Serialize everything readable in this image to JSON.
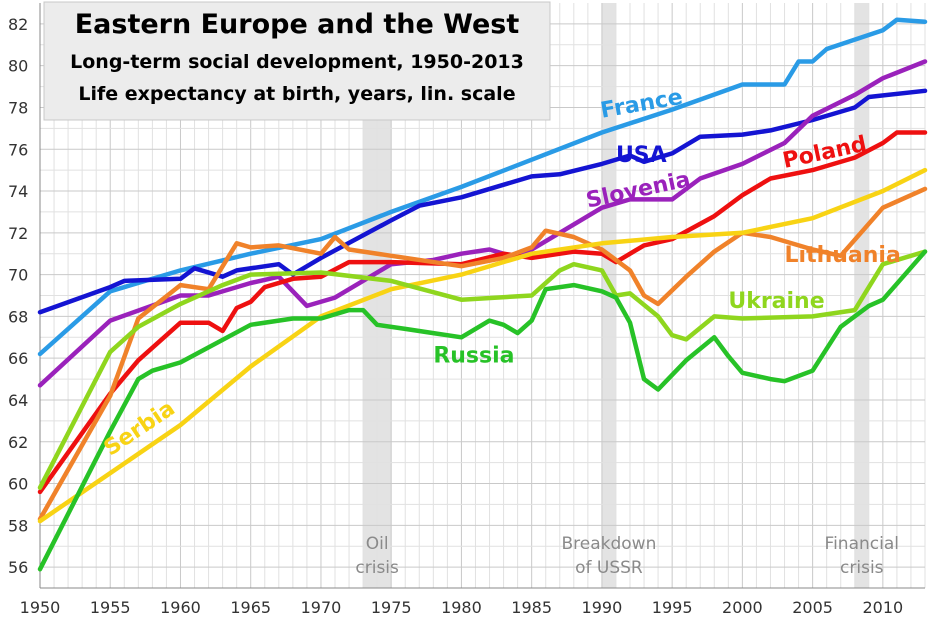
{
  "chart_data": {
    "type": "line",
    "title": "Eastern Europe and the West",
    "subtitle": "Long-term social development, 1950-2013",
    "subtitle2": "Life expectancy at birth, years, lin. scale",
    "xlim": [
      1950,
      2013
    ],
    "ylim": [
      55,
      83
    ],
    "x_ticks": [
      1950,
      1955,
      1960,
      1965,
      1970,
      1975,
      1980,
      1985,
      1990,
      1995,
      2000,
      2005,
      2010
    ],
    "y_ticks": [
      56,
      58,
      60,
      62,
      64,
      66,
      68,
      70,
      72,
      74,
      76,
      78,
      80,
      82
    ],
    "grid": true,
    "bands": [
      {
        "start": 1973,
        "end": 1975,
        "label_lines": [
          "Oil",
          "crisis"
        ]
      },
      {
        "start": 1990,
        "end": 1991,
        "label_lines": [
          "Breakdown",
          "of USSR"
        ]
      },
      {
        "start": 2008,
        "end": 2009,
        "label_lines": [
          "Financial",
          "crisis"
        ]
      }
    ],
    "series": [
      {
        "name": "France",
        "color": "#2a9be6",
        "label_x": 1990,
        "label_y": 77.5,
        "points": [
          [
            1950,
            66.2
          ],
          [
            1955,
            69.2
          ],
          [
            1960,
            70.2
          ],
          [
            1965,
            71.0
          ],
          [
            1970,
            71.7
          ],
          [
            1975,
            73.0
          ],
          [
            1980,
            74.2
          ],
          [
            1985,
            75.5
          ],
          [
            1990,
            76.8
          ],
          [
            1995,
            77.9
          ],
          [
            2000,
            79.1
          ],
          [
            2003,
            79.1
          ],
          [
            2004,
            80.2
          ],
          [
            2005,
            80.2
          ],
          [
            2006,
            80.8
          ],
          [
            2010,
            81.7
          ],
          [
            2011,
            82.2
          ],
          [
            2013,
            82.1
          ]
        ]
      },
      {
        "name": "USA",
        "color": "#1414d2",
        "label_x": 1991,
        "label_y": 75.4,
        "points": [
          [
            1950,
            68.2
          ],
          [
            1955,
            69.4
          ],
          [
            1956,
            69.7
          ],
          [
            1960,
            69.8
          ],
          [
            1961,
            70.3
          ],
          [
            1963,
            69.9
          ],
          [
            1964,
            70.2
          ],
          [
            1967,
            70.5
          ],
          [
            1968,
            70.0
          ],
          [
            1970,
            70.8
          ],
          [
            1975,
            72.6
          ],
          [
            1977,
            73.3
          ],
          [
            1980,
            73.7
          ],
          [
            1985,
            74.7
          ],
          [
            1987,
            74.8
          ],
          [
            1990,
            75.3
          ],
          [
            1992,
            75.7
          ],
          [
            1993,
            75.4
          ],
          [
            1995,
            75.8
          ],
          [
            1997,
            76.6
          ],
          [
            2000,
            76.7
          ],
          [
            2002,
            76.9
          ],
          [
            2005,
            77.4
          ],
          [
            2008,
            78.0
          ],
          [
            2009,
            78.5
          ],
          [
            2013,
            78.8
          ]
        ]
      },
      {
        "name": "Slovenia",
        "color": "#9a22bb",
        "label_x": 1989,
        "label_y": 73.2,
        "points": [
          [
            1950,
            64.7
          ],
          [
            1955,
            67.8
          ],
          [
            1960,
            69.0
          ],
          [
            1962,
            69.0
          ],
          [
            1965,
            69.6
          ],
          [
            1967,
            69.9
          ],
          [
            1969,
            68.5
          ],
          [
            1971,
            68.9
          ],
          [
            1975,
            70.5
          ],
          [
            1978,
            70.7
          ],
          [
            1980,
            71.0
          ],
          [
            1982,
            71.2
          ],
          [
            1984,
            70.8
          ],
          [
            1987,
            72.0
          ],
          [
            1990,
            73.2
          ],
          [
            1992,
            73.6
          ],
          [
            1995,
            73.6
          ],
          [
            1997,
            74.6
          ],
          [
            2000,
            75.3
          ],
          [
            2003,
            76.3
          ],
          [
            2005,
            77.6
          ],
          [
            2008,
            78.6
          ],
          [
            2010,
            79.4
          ],
          [
            2013,
            80.2
          ]
        ]
      },
      {
        "name": "Poland",
        "color": "#ee1010",
        "label_x": 2003,
        "label_y": 75.1,
        "points": [
          [
            1950,
            59.6
          ],
          [
            1955,
            64.3
          ],
          [
            1957,
            65.9
          ],
          [
            1960,
            67.7
          ],
          [
            1962,
            67.7
          ],
          [
            1963,
            67.3
          ],
          [
            1964,
            68.4
          ],
          [
            1965,
            68.7
          ],
          [
            1966,
            69.4
          ],
          [
            1968,
            69.8
          ],
          [
            1970,
            69.9
          ],
          [
            1972,
            70.6
          ],
          [
            1975,
            70.6
          ],
          [
            1980,
            70.5
          ],
          [
            1983,
            71.0
          ],
          [
            1985,
            70.8
          ],
          [
            1988,
            71.1
          ],
          [
            1990,
            71.0
          ],
          [
            1991,
            70.6
          ],
          [
            1993,
            71.4
          ],
          [
            1995,
            71.7
          ],
          [
            1998,
            72.8
          ],
          [
            2000,
            73.8
          ],
          [
            2002,
            74.6
          ],
          [
            2005,
            75.0
          ],
          [
            2008,
            75.6
          ],
          [
            2010,
            76.3
          ],
          [
            2011,
            76.8
          ],
          [
            2013,
            76.8
          ]
        ]
      },
      {
        "name": "Lithuania",
        "color": "#f0822a",
        "label_x": 2003,
        "label_y": 70.6,
        "points": [
          [
            1950,
            58.3
          ],
          [
            1955,
            64.2
          ],
          [
            1957,
            67.9
          ],
          [
            1960,
            69.5
          ],
          [
            1962,
            69.3
          ],
          [
            1964,
            71.5
          ],
          [
            1965,
            71.3
          ],
          [
            1967,
            71.4
          ],
          [
            1970,
            71.0
          ],
          [
            1971,
            71.8
          ],
          [
            1972,
            71.2
          ],
          [
            1975,
            70.9
          ],
          [
            1980,
            70.4
          ],
          [
            1983,
            70.8
          ],
          [
            1985,
            71.3
          ],
          [
            1986,
            72.1
          ],
          [
            1988,
            71.8
          ],
          [
            1990,
            71.2
          ],
          [
            1992,
            70.2
          ],
          [
            1993,
            69.0
          ],
          [
            1994,
            68.6
          ],
          [
            1996,
            69.9
          ],
          [
            1998,
            71.1
          ],
          [
            2000,
            72.0
          ],
          [
            2002,
            71.8
          ],
          [
            2005,
            71.2
          ],
          [
            2007,
            70.9
          ],
          [
            2010,
            73.2
          ],
          [
            2013,
            74.1
          ]
        ]
      },
      {
        "name": "Serbia",
        "color": "#f8d314",
        "label_x": 1955,
        "label_y": 61.3,
        "points": [
          [
            1950,
            58.2
          ],
          [
            1955,
            60.5
          ],
          [
            1960,
            62.8
          ],
          [
            1965,
            65.6
          ],
          [
            1970,
            68.0
          ],
          [
            1975,
            69.3
          ],
          [
            1980,
            70.0
          ],
          [
            1985,
            71.0
          ],
          [
            1990,
            71.5
          ],
          [
            1995,
            71.8
          ],
          [
            2000,
            72.0
          ],
          [
            2005,
            72.7
          ],
          [
            2010,
            74.0
          ],
          [
            2013,
            75.0
          ]
        ]
      },
      {
        "name": "Ukraine",
        "color": "#8fd61e",
        "label_x": 1999,
        "label_y": 68.4,
        "points": [
          [
            1950,
            59.8
          ],
          [
            1955,
            66.3
          ],
          [
            1957,
            67.5
          ],
          [
            1960,
            68.6
          ],
          [
            1963,
            69.5
          ],
          [
            1965,
            70.0
          ],
          [
            1970,
            70.1
          ],
          [
            1975,
            69.7
          ],
          [
            1980,
            68.8
          ],
          [
            1985,
            69.0
          ],
          [
            1987,
            70.2
          ],
          [
            1988,
            70.5
          ],
          [
            1990,
            70.2
          ],
          [
            1991,
            69.0
          ],
          [
            1992,
            69.1
          ],
          [
            1994,
            68.0
          ],
          [
            1995,
            67.1
          ],
          [
            1996,
            66.9
          ],
          [
            1998,
            68.0
          ],
          [
            2000,
            67.9
          ],
          [
            2005,
            68.0
          ],
          [
            2008,
            68.3
          ],
          [
            2010,
            70.5
          ],
          [
            2013,
            71.1
          ]
        ]
      },
      {
        "name": "Russia",
        "color": "#27c227",
        "label_x": 1978,
        "label_y": 65.8,
        "points": [
          [
            1950,
            55.9
          ],
          [
            1955,
            62.5
          ],
          [
            1957,
            65.0
          ],
          [
            1958,
            65.4
          ],
          [
            1960,
            65.8
          ],
          [
            1965,
            67.6
          ],
          [
            1968,
            67.9
          ],
          [
            1970,
            67.9
          ],
          [
            1972,
            68.3
          ],
          [
            1973,
            68.3
          ],
          [
            1974,
            67.6
          ],
          [
            1976,
            67.4
          ],
          [
            1978,
            67.2
          ],
          [
            1980,
            67.0
          ],
          [
            1982,
            67.8
          ],
          [
            1983,
            67.6
          ],
          [
            1984,
            67.2
          ],
          [
            1985,
            67.8
          ],
          [
            1986,
            69.3
          ],
          [
            1988,
            69.5
          ],
          [
            1990,
            69.2
          ],
          [
            1991,
            68.9
          ],
          [
            1992,
            67.7
          ],
          [
            1993,
            65.0
          ],
          [
            1994,
            64.5
          ],
          [
            1996,
            65.9
          ],
          [
            1998,
            67.0
          ],
          [
            1999,
            66.1
          ],
          [
            2000,
            65.3
          ],
          [
            2002,
            65.0
          ],
          [
            2003,
            64.9
          ],
          [
            2005,
            65.4
          ],
          [
            2007,
            67.5
          ],
          [
            2009,
            68.5
          ],
          [
            2010,
            68.8
          ],
          [
            2013,
            71.1
          ]
        ]
      }
    ]
  }
}
